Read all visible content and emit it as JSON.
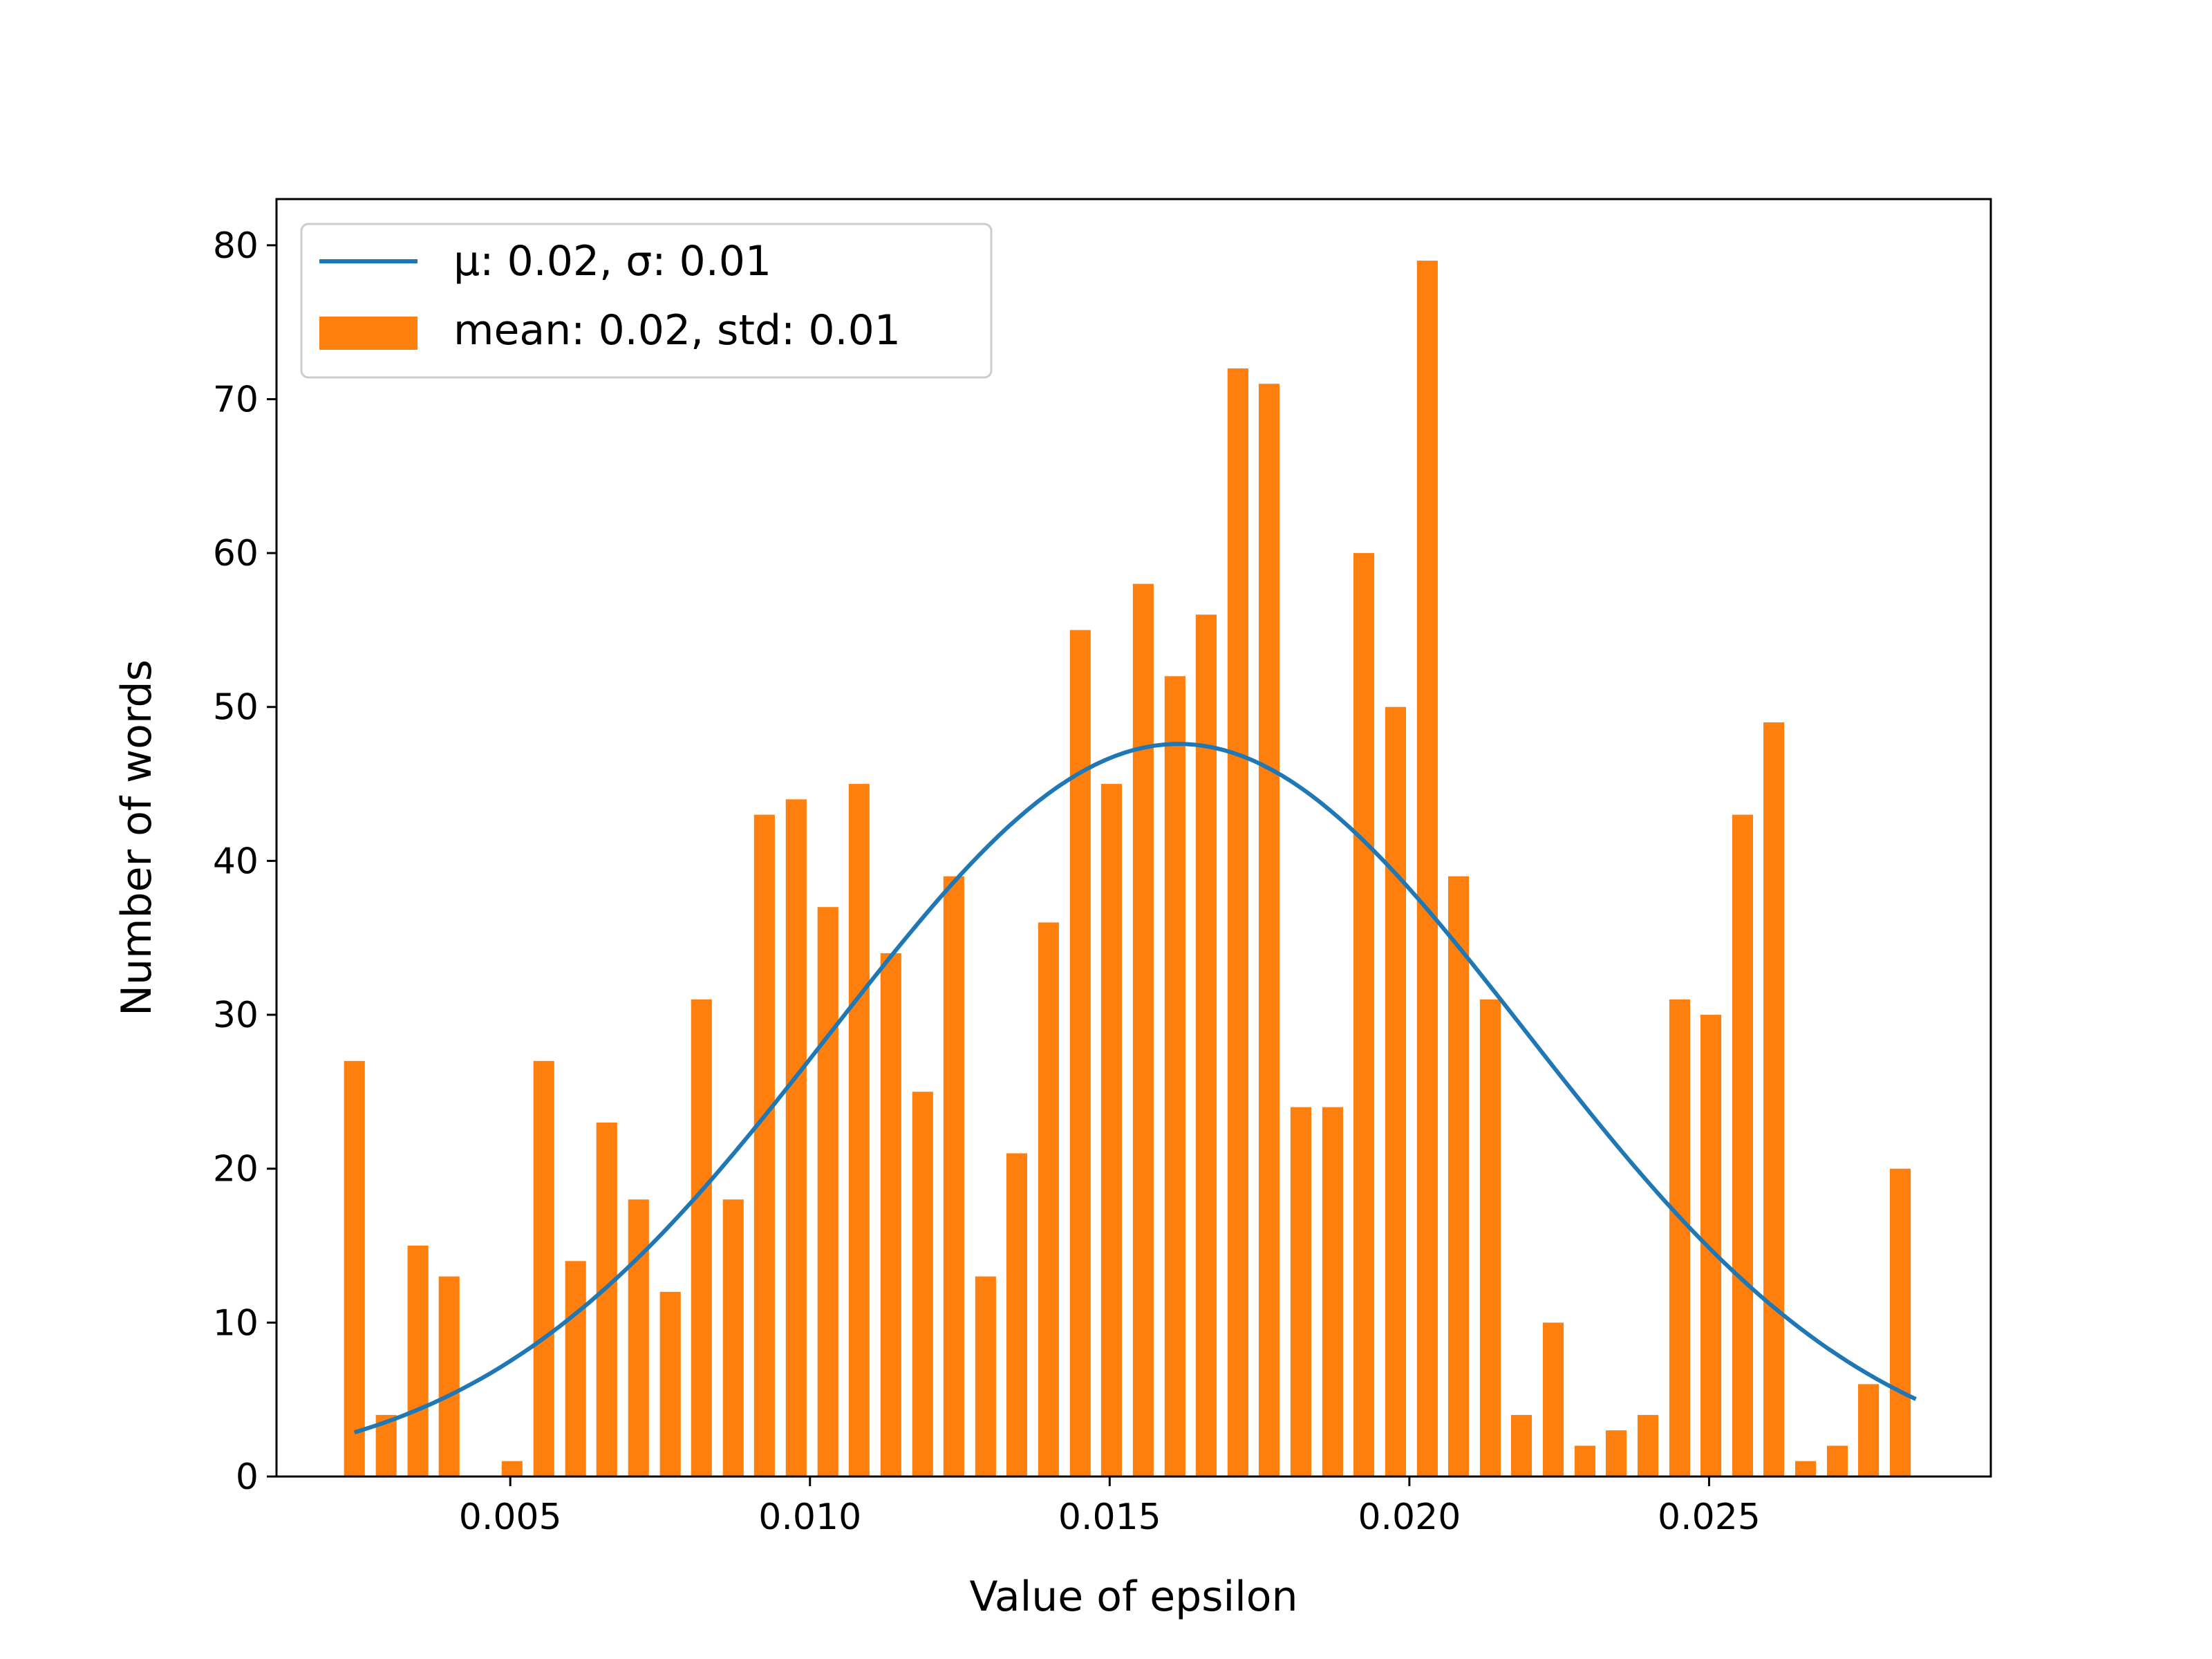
{
  "chart_data": {
    "type": "bar",
    "xlabel": "Value of epsilon",
    "ylabel": "Number of words",
    "xlim": [
      0.0011,
      0.0297
    ],
    "ylim": [
      0,
      83
    ],
    "xticks": [
      0.005,
      0.01,
      0.015,
      0.02,
      0.025
    ],
    "xtick_labels": [
      "0.005",
      "0.010",
      "0.015",
      "0.020",
      "0.025"
    ],
    "yticks": [
      0,
      10,
      20,
      30,
      40,
      50,
      60,
      70,
      80
    ],
    "ytick_labels": [
      "0",
      "10",
      "20",
      "30",
      "40",
      "50",
      "60",
      "70",
      "80"
    ],
    "grid": false,
    "legend_position": "top-left",
    "bars": {
      "name": "mean: 0.02, std: 0.01",
      "color": "#ff7f0e",
      "x": [
        0.0024,
        0.00293,
        0.00346,
        0.00398,
        0.00451,
        0.00503,
        0.00556,
        0.00609,
        0.00661,
        0.00714,
        0.00767,
        0.00819,
        0.00872,
        0.00924,
        0.00977,
        0.0103,
        0.01082,
        0.01135,
        0.01188,
        0.0124,
        0.01293,
        0.01345,
        0.01398,
        0.01451,
        0.01503,
        0.01556,
        0.01609,
        0.01661,
        0.01714,
        0.01766,
        0.01819,
        0.01872,
        0.01924,
        0.01977,
        0.0203,
        0.02082,
        0.02135,
        0.02187,
        0.0224,
        0.02293,
        0.02345,
        0.02398,
        0.02451,
        0.02503,
        0.02556,
        0.02608,
        0.02661,
        0.02714,
        0.02766,
        0.02819
      ],
      "values": [
        27,
        4,
        15,
        13,
        0,
        1,
        27,
        14,
        23,
        18,
        12,
        31,
        18,
        43,
        44,
        37,
        45,
        34,
        25,
        39,
        13,
        21,
        36,
        55,
        45,
        58,
        52,
        56,
        72,
        71,
        24,
        24,
        60,
        50,
        79,
        39,
        31,
        4,
        10,
        2,
        3,
        4,
        31,
        30,
        43,
        49,
        1,
        2,
        6,
        20
      ]
    },
    "series": [
      {
        "name": "μ: 0.02, σ: 0.01",
        "color": "#1f77b4",
        "type": "normal_curve",
        "mean": 0.01615,
        "std": 0.0058,
        "peak": 47.6,
        "x_range": [
          0.0024,
          0.02845
        ]
      }
    ]
  }
}
